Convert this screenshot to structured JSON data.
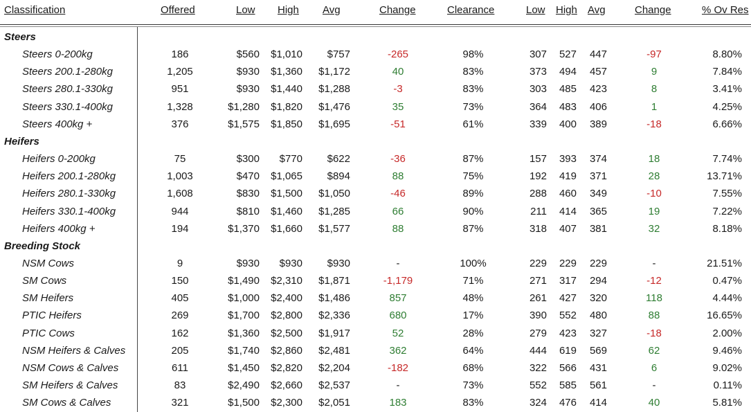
{
  "headers": {
    "classification": "Classification",
    "offered": "Offered",
    "low": "Low",
    "high": "High",
    "avg": "Avg",
    "change": "Change",
    "clearance": "Clearance",
    "low2": "Low",
    "high2": "High",
    "avg2": "Avg",
    "change2": "Change",
    "ov_res": "% Ov Res"
  },
  "rows": [
    {
      "type": "category",
      "label": "Steers"
    },
    {
      "type": "item",
      "label": "Steers 0-200kg",
      "offered": "186",
      "low": "$560",
      "high": "$1,010",
      "avg": "$757",
      "change": "-265",
      "clearance": "98%",
      "low2": "307",
      "high2": "527",
      "avg2": "447",
      "change2": "-97",
      "ov_res": "8.80%"
    },
    {
      "type": "item",
      "label": "Steers 200.1-280kg",
      "offered": "1,205",
      "low": "$930",
      "high": "$1,360",
      "avg": "$1,172",
      "change": "40",
      "clearance": "83%",
      "low2": "373",
      "high2": "494",
      "avg2": "457",
      "change2": "9",
      "ov_res": "7.84%"
    },
    {
      "type": "item",
      "label": "Steers 280.1-330kg",
      "offered": "951",
      "low": "$930",
      "high": "$1,440",
      "avg": "$1,288",
      "change": "-3",
      "clearance": "83%",
      "low2": "303",
      "high2": "485",
      "avg2": "423",
      "change2": "8",
      "ov_res": "3.41%"
    },
    {
      "type": "item",
      "label": "Steers 330.1-400kg",
      "offered": "1,328",
      "low": "$1,280",
      "high": "$1,820",
      "avg": "$1,476",
      "change": "35",
      "clearance": "73%",
      "low2": "364",
      "high2": "483",
      "avg2": "406",
      "change2": "1",
      "ov_res": "4.25%"
    },
    {
      "type": "item",
      "label": "Steers 400kg +",
      "offered": "376",
      "low": "$1,575",
      "high": "$1,850",
      "avg": "$1,695",
      "change": "-51",
      "clearance": "61%",
      "low2": "339",
      "high2": "400",
      "avg2": "389",
      "change2": "-18",
      "ov_res": "6.66%"
    },
    {
      "type": "category",
      "label": "Heifers"
    },
    {
      "type": "item",
      "label": "Heifers 0-200kg",
      "offered": "75",
      "low": "$300",
      "high": "$770",
      "avg": "$622",
      "change": "-36",
      "clearance": "87%",
      "low2": "157",
      "high2": "393",
      "avg2": "374",
      "change2": "18",
      "ov_res": "7.74%"
    },
    {
      "type": "item",
      "label": "Heifers 200.1-280kg",
      "offered": "1,003",
      "low": "$470",
      "high": "$1,065",
      "avg": "$894",
      "change": "88",
      "clearance": "75%",
      "low2": "192",
      "high2": "419",
      "avg2": "371",
      "change2": "28",
      "ov_res": "13.71%"
    },
    {
      "type": "item",
      "label": "Heifers 280.1-330kg",
      "offered": "1,608",
      "low": "$830",
      "high": "$1,500",
      "avg": "$1,050",
      "change": "-46",
      "clearance": "89%",
      "low2": "288",
      "high2": "460",
      "avg2": "349",
      "change2": "-10",
      "ov_res": "7.55%"
    },
    {
      "type": "item",
      "label": "Heifers 330.1-400kg",
      "offered": "944",
      "low": "$810",
      "high": "$1,460",
      "avg": "$1,285",
      "change": "66",
      "clearance": "90%",
      "low2": "211",
      "high2": "414",
      "avg2": "365",
      "change2": "19",
      "ov_res": "7.22%"
    },
    {
      "type": "item",
      "label": "Heifers 400kg +",
      "offered": "194",
      "low": "$1,370",
      "high": "$1,660",
      "avg": "$1,577",
      "change": "88",
      "clearance": "87%",
      "low2": "318",
      "high2": "407",
      "avg2": "381",
      "change2": "32",
      "ov_res": "8.18%"
    },
    {
      "type": "category",
      "label": "Breeding Stock"
    },
    {
      "type": "item",
      "label": "NSM Cows",
      "offered": "9",
      "low": "$930",
      "high": "$930",
      "avg": "$930",
      "change": "-",
      "clearance": "100%",
      "low2": "229",
      "high2": "229",
      "avg2": "229",
      "change2": "-",
      "ov_res": "21.51%"
    },
    {
      "type": "item",
      "label": "SM Cows",
      "offered": "150",
      "low": "$1,490",
      "high": "$2,310",
      "avg": "$1,871",
      "change": "-1,179",
      "clearance": "71%",
      "low2": "271",
      "high2": "317",
      "avg2": "294",
      "change2": "-12",
      "ov_res": "0.47%"
    },
    {
      "type": "item",
      "label": "SM Heifers",
      "offered": "405",
      "low": "$1,000",
      "high": "$2,400",
      "avg": "$1,486",
      "change": "857",
      "clearance": "48%",
      "low2": "261",
      "high2": "427",
      "avg2": "320",
      "change2": "118",
      "ov_res": "4.44%"
    },
    {
      "type": "item",
      "label": "PTIC Heifers",
      "offered": "269",
      "low": "$1,700",
      "high": "$2,800",
      "avg": "$2,336",
      "change": "680",
      "clearance": "17%",
      "low2": "390",
      "high2": "552",
      "avg2": "480",
      "change2": "88",
      "ov_res": "16.65%"
    },
    {
      "type": "item",
      "label": "PTIC Cows",
      "offered": "162",
      "low": "$1,360",
      "high": "$2,500",
      "avg": "$1,917",
      "change": "52",
      "clearance": "28%",
      "low2": "279",
      "high2": "423",
      "avg2": "327",
      "change2": "-18",
      "ov_res": "2.00%"
    },
    {
      "type": "item",
      "label": "NSM Heifers & Calves",
      "offered": "205",
      "low": "$1,740",
      "high": "$2,860",
      "avg": "$2,481",
      "change": "362",
      "clearance": "64%",
      "low2": "444",
      "high2": "619",
      "avg2": "569",
      "change2": "62",
      "ov_res": "9.46%"
    },
    {
      "type": "item",
      "label": "NSM Cows & Calves",
      "offered": "611",
      "low": "$1,450",
      "high": "$2,820",
      "avg": "$2,204",
      "change": "-182",
      "clearance": "68%",
      "low2": "322",
      "high2": "566",
      "avg2": "431",
      "change2": "6",
      "ov_res": "9.02%"
    },
    {
      "type": "item",
      "label": "SM Heifers & Calves",
      "offered": "83",
      "low": "$2,490",
      "high": "$2,660",
      "avg": "$2,537",
      "change": "-",
      "clearance": "73%",
      "low2": "552",
      "high2": "585",
      "avg2": "561",
      "change2": "-",
      "ov_res": "0.11%"
    },
    {
      "type": "item",
      "label": "SM Cows & Calves",
      "offered": "321",
      "low": "$1,500",
      "high": "$2,300",
      "avg": "$2,051",
      "change": "183",
      "clearance": "83%",
      "low2": "324",
      "high2": "476",
      "avg2": "414",
      "change2": "40",
      "ov_res": "5.81%"
    }
  ],
  "colors": {
    "positive": "#2e7d32",
    "negative": "#c62828",
    "text": "#1a1a1a"
  }
}
